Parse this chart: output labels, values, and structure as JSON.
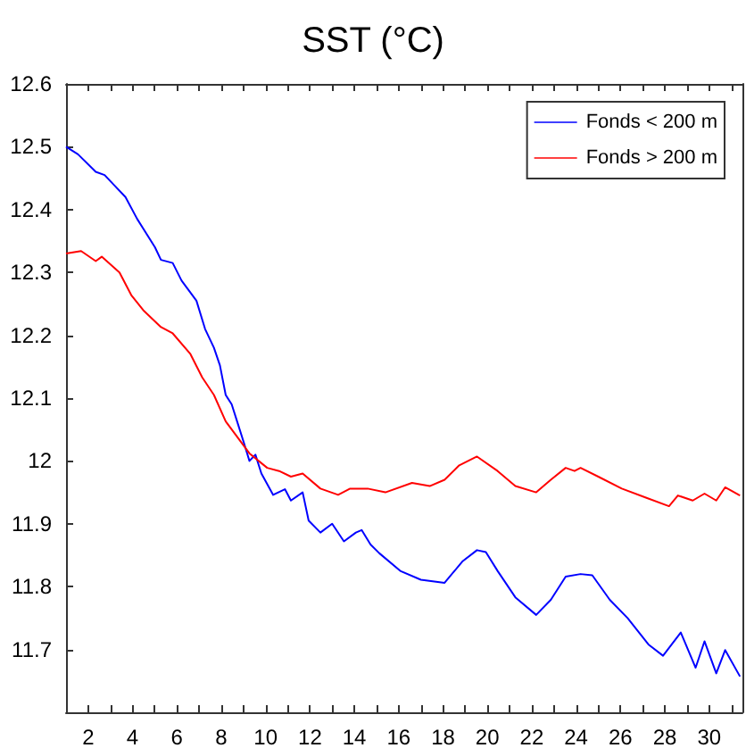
{
  "chart_data": {
    "type": "line",
    "title": "SST (°C)",
    "legend": "top right",
    "grid": false,
    "marker": "none",
    "line_style": "solid",
    "xlim": [
      1,
      31.5
    ],
    "ylim": [
      11.6,
      12.6
    ],
    "xticks": [
      2,
      {
        "value": 3,
        "label": null
      },
      4,
      {
        "value": 5,
        "label": null
      },
      6,
      {
        "value": 7,
        "label": null
      },
      8,
      {
        "value": 9,
        "label": null
      },
      10,
      {
        "value": 11,
        "label": null
      },
      12,
      {
        "value": 13,
        "label": null
      },
      14,
      {
        "value": 15,
        "label": null
      },
      16,
      {
        "value": 17,
        "label": null
      },
      18,
      {
        "value": 19,
        "label": null
      },
      20,
      {
        "value": 21,
        "label": null
      },
      22,
      {
        "value": 23,
        "label": null
      },
      24,
      {
        "value": 25,
        "label": null
      },
      26,
      {
        "value": 27,
        "label": null
      },
      28,
      {
        "value": 29,
        "label": null
      },
      30,
      {
        "value": 31,
        "label": null
      }
    ],
    "yticks": [
      11.7,
      11.8,
      11.9,
      12,
      12.1,
      12.2,
      12.3,
      12.4,
      12.5,
      12.6
    ],
    "series": [
      {
        "name": "Fonds < 200 m",
        "color": "#0000ff",
        "x": [
          1,
          1.54,
          2.34,
          2.74,
          3.14,
          3.68,
          4.21,
          5.01,
          5.28,
          5.81,
          6.21,
          6.88,
          7.27,
          7.67,
          7.94,
          8.2,
          8.47,
          8.74,
          9.01,
          9.27,
          9.54,
          9.81,
          10.34,
          10.87,
          11.14,
          11.67,
          11.94,
          12.47,
          13,
          13.53,
          14.07,
          14.33,
          14.73,
          15.13,
          16.07,
          17,
          18.07,
          18.87,
          19.53,
          19.93,
          20.46,
          21.26,
          22.2,
          22.86,
          23.53,
          24.2,
          24.73,
          25.52,
          26.32,
          27.26,
          27.92,
          28.72,
          29.39,
          29.79,
          30.32,
          30.72,
          31.39
        ],
        "values": [
          12.5,
          12.488,
          12.46,
          12.455,
          12.44,
          12.42,
          12.385,
          12.34,
          12.32,
          12.315,
          12.287,
          12.255,
          12.21,
          12.18,
          12.152,
          12.105,
          12.09,
          12.06,
          12.03,
          12,
          12.01,
          11.98,
          11.946,
          11.955,
          11.937,
          11.95,
          11.905,
          11.886,
          11.9,
          11.872,
          11.886,
          11.89,
          11.867,
          11.853,
          11.825,
          11.811,
          11.806,
          11.84,
          11.858,
          11.855,
          11.825,
          11.783,
          11.755,
          11.779,
          11.816,
          11.82,
          11.818,
          11.779,
          11.75,
          11.708,
          11.69,
          11.727,
          11.671,
          11.713,
          11.662,
          11.699,
          11.657
        ]
      },
      {
        "name": "Fonds > 200 m",
        "color": "#ff0000",
        "x": [
          1,
          1.68,
          2.34,
          2.61,
          3.41,
          3.94,
          4.48,
          5.28,
          5.81,
          6.61,
          7.14,
          7.67,
          8.2,
          8.47,
          9.27,
          10.07,
          10.61,
          11.14,
          11.67,
          12.47,
          13.27,
          13.81,
          14.6,
          15.4,
          16.6,
          17.4,
          18.07,
          18.73,
          19.53,
          20.46,
          21.26,
          22.2,
          22.86,
          23.53,
          23.93,
          24.2,
          25,
          26.06,
          27.12,
          28.19,
          28.59,
          29.26,
          29.79,
          30.32,
          30.72,
          31.39
        ],
        "values": [
          12.33,
          12.334,
          12.318,
          12.325,
          12.3,
          12.264,
          12.24,
          12.213,
          12.203,
          12.17,
          12.133,
          12.105,
          12.063,
          12.05,
          12.012,
          11.989,
          11.984,
          11.975,
          11.98,
          11.956,
          11.946,
          11.956,
          11.956,
          11.95,
          11.965,
          11.96,
          11.97,
          11.993,
          12.007,
          11.984,
          11.96,
          11.95,
          11.97,
          11.989,
          11.984,
          11.989,
          11.975,
          11.956,
          11.942,
          11.928,
          11.945,
          11.937,
          11.948,
          11.937,
          11.958,
          11.945
        ]
      }
    ]
  }
}
